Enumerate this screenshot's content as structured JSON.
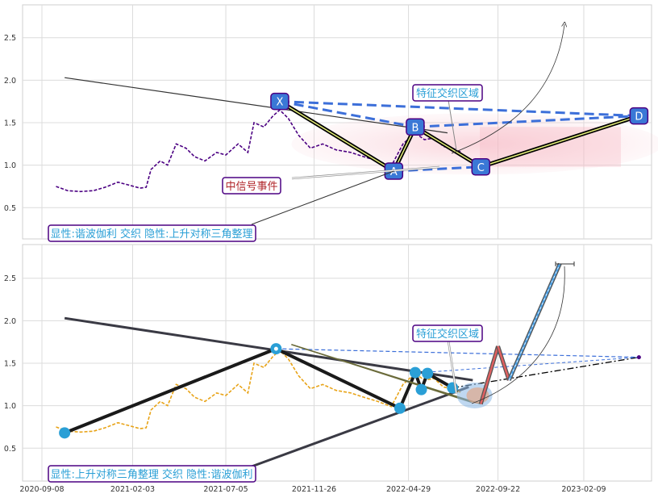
{
  "chart_data": [
    {
      "type": "line",
      "panel": "top",
      "title": "",
      "xlabel": "",
      "ylabel": "",
      "ylim": [
        0.1,
        2.85
      ],
      "yticks": [
        "0.5",
        "1.0",
        "1.5",
        "2.0",
        "2.5"
      ],
      "grid": true,
      "series": [
        {
          "style": "dashed",
          "color": "#4b0082",
          "points": [
            [
              "2020-10-01",
              0.75
            ],
            [
              "2020-10-20",
              0.7
            ],
            [
              "2020-11-10",
              0.69
            ],
            [
              "2020-12-01",
              0.7
            ],
            [
              "2020-12-20",
              0.74
            ],
            [
              "2021-01-10",
              0.8
            ],
            [
              "2021-01-31",
              0.76
            ],
            [
              "2021-02-15",
              0.73
            ],
            [
              "2021-02-25",
              0.74
            ],
            [
              "2021-03-05",
              0.95
            ],
            [
              "2021-03-20",
              1.05
            ],
            [
              "2021-04-01",
              1.0
            ],
            [
              "2021-04-15",
              1.25
            ],
            [
              "2021-05-01",
              1.2
            ],
            [
              "2021-05-15",
              1.1
            ],
            [
              "2021-06-01",
              1.05
            ],
            [
              "2021-06-20",
              1.15
            ],
            [
              "2021-07-05",
              1.12
            ],
            [
              "2021-07-25",
              1.25
            ],
            [
              "2021-08-10",
              1.15
            ],
            [
              "2021-08-20",
              1.5
            ],
            [
              "2021-09-05",
              1.45
            ],
            [
              "2021-09-20",
              1.58
            ],
            [
              "2021-10-01",
              1.65
            ],
            [
              "2021-10-15",
              1.55
            ],
            [
              "2021-11-01",
              1.35
            ],
            [
              "2021-11-20",
              1.2
            ],
            [
              "2021-12-10",
              1.25
            ],
            [
              "2022-01-01",
              1.18
            ],
            [
              "2022-01-25",
              1.15
            ],
            [
              "2022-02-15",
              1.1
            ],
            [
              "2022-03-10",
              1.05
            ],
            [
              "2022-04-01",
              0.99
            ],
            [
              "2022-04-20",
              1.25
            ],
            [
              "2022-05-10",
              1.38
            ],
            [
              "2022-05-25",
              1.3
            ],
            [
              "2022-06-10",
              1.32
            ],
            [
              "2022-06-25",
              1.22
            ],
            [
              "2022-07-10",
              1.2
            ],
            [
              "2022-07-25",
              1.15
            ]
          ]
        }
      ],
      "pattern_points": [
        {
          "label": "X",
          "x": "2021-10-01",
          "y": 1.75
        },
        {
          "label": "A",
          "x": "2022-04-05",
          "y": 0.93
        },
        {
          "label": "B",
          "x": "2022-05-10",
          "y": 1.45
        },
        {
          "label": "C",
          "x": "2022-08-25",
          "y": 0.98
        },
        {
          "label": "D",
          "x": "2023-05-10",
          "y": 1.58
        }
      ],
      "annotations": [
        {
          "text": "特征交织区域",
          "target": [
            "2022-08-15",
            1.05
          ]
        },
        {
          "text": "中信号事件",
          "target": [
            "2022-06-10",
            0.98
          ]
        }
      ],
      "pattern_label": "显性:谐波伽利 交织 隐性:上升对称三角整理"
    },
    {
      "type": "line",
      "panel": "bottom",
      "title": "",
      "xlabel": "",
      "ylabel": "",
      "ylim": [
        0.1,
        2.85
      ],
      "yticks": [
        "0.5",
        "1.0",
        "1.5",
        "2.0",
        "2.5"
      ],
      "xticks": [
        "2020-09-08",
        "2021-02-03",
        "2021-07-05",
        "2021-11-26",
        "2022-04-29",
        "2022-09-22",
        "2023-02-09"
      ],
      "grid": true,
      "series": [
        {
          "style": "dashed",
          "color": "#e8a317",
          "points": [
            [
              "2020-10-01",
              0.75
            ],
            [
              "2020-10-20",
              0.7
            ],
            [
              "2020-11-10",
              0.69
            ],
            [
              "2020-12-01",
              0.7
            ],
            [
              "2020-12-20",
              0.74
            ],
            [
              "2021-01-10",
              0.8
            ],
            [
              "2021-01-31",
              0.76
            ],
            [
              "2021-02-15",
              0.73
            ],
            [
              "2021-02-25",
              0.74
            ],
            [
              "2021-03-05",
              0.95
            ],
            [
              "2021-03-20",
              1.05
            ],
            [
              "2021-04-01",
              1.0
            ],
            [
              "2021-04-15",
              1.25
            ],
            [
              "2021-05-01",
              1.2
            ],
            [
              "2021-05-15",
              1.1
            ],
            [
              "2021-06-01",
              1.05
            ],
            [
              "2021-06-20",
              1.15
            ],
            [
              "2021-07-05",
              1.12
            ],
            [
              "2021-07-25",
              1.25
            ],
            [
              "2021-08-10",
              1.15
            ],
            [
              "2021-08-20",
              1.5
            ],
            [
              "2021-09-05",
              1.45
            ],
            [
              "2021-09-20",
              1.58
            ],
            [
              "2021-10-01",
              1.65
            ],
            [
              "2021-10-15",
              1.55
            ],
            [
              "2021-11-01",
              1.35
            ],
            [
              "2021-11-20",
              1.2
            ],
            [
              "2021-12-10",
              1.25
            ],
            [
              "2022-01-01",
              1.18
            ],
            [
              "2022-01-25",
              1.15
            ],
            [
              "2022-02-15",
              1.1
            ],
            [
              "2022-03-10",
              1.05
            ],
            [
              "2022-04-01",
              0.99
            ],
            [
              "2022-04-20",
              1.25
            ],
            [
              "2022-05-10",
              1.38
            ],
            [
              "2022-05-25",
              1.3
            ],
            [
              "2022-06-10",
              1.32
            ],
            [
              "2022-06-25",
              1.22
            ],
            [
              "2022-07-10",
              1.2
            ],
            [
              "2022-07-25",
              1.15
            ]
          ]
        }
      ],
      "pivots": [
        {
          "x": "2020-10-15",
          "y": 0.68
        },
        {
          "x": "2021-09-25",
          "y": 1.67
        },
        {
          "x": "2022-04-15",
          "y": 0.97
        },
        {
          "x": "2022-05-10",
          "y": 1.39
        },
        {
          "x": "2022-05-20",
          "y": 1.19
        },
        {
          "x": "2022-05-30",
          "y": 1.38
        },
        {
          "x": "2022-07-10",
          "y": 1.21
        }
      ],
      "projection": [
        {
          "x": "2022-08-25",
          "y": 1.02
        },
        {
          "x": "2022-09-22",
          "y": 1.7
        },
        {
          "x": "2022-10-10",
          "y": 1.3
        },
        {
          "x": "2023-01-01",
          "y": 2.67
        }
      ],
      "annotations": [
        {
          "text": "特征交织区域",
          "target": [
            "2022-08-15",
            1.1
          ]
        }
      ],
      "pattern_label": "显性:上升对称三角整理 交织 隐性:谐波伽利"
    }
  ]
}
